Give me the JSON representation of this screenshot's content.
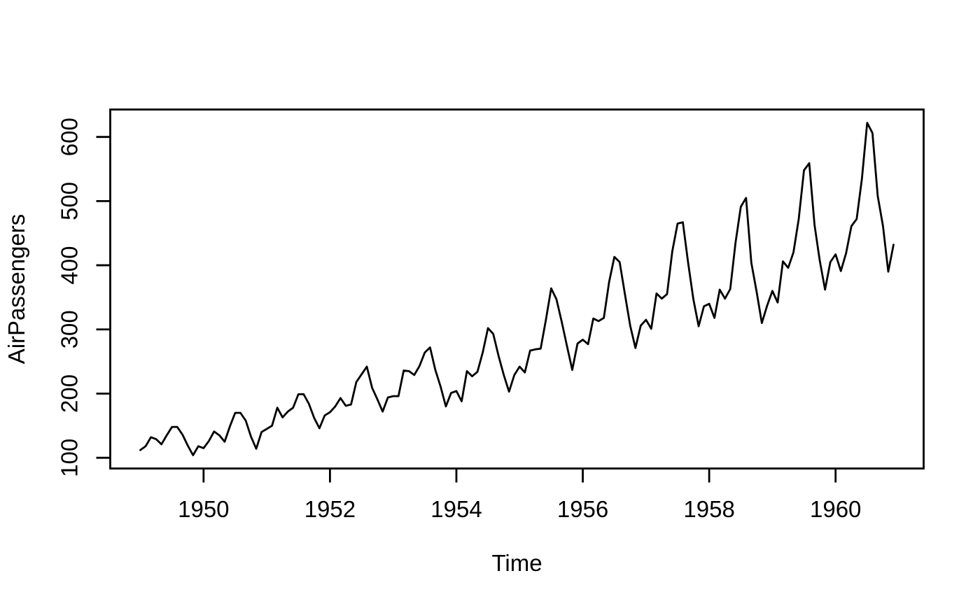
{
  "chart_data": {
    "type": "line",
    "title": "",
    "xlabel": "Time",
    "ylabel": "AirPassengers",
    "series": [
      {
        "name": "AirPassengers",
        "start_year": 1949,
        "frequency": 12,
        "values": [
          112,
          118,
          132,
          129,
          121,
          135,
          148,
          148,
          136,
          119,
          104,
          118,
          115,
          126,
          141,
          135,
          125,
          149,
          170,
          170,
          158,
          133,
          114,
          140,
          145,
          150,
          178,
          163,
          172,
          178,
          199,
          199,
          184,
          162,
          146,
          166,
          171,
          180,
          193,
          181,
          183,
          218,
          230,
          242,
          209,
          191,
          172,
          194,
          196,
          196,
          236,
          235,
          229,
          243,
          264,
          272,
          237,
          211,
          180,
          201,
          204,
          188,
          235,
          227,
          234,
          264,
          302,
          293,
          259,
          229,
          203,
          229,
          242,
          233,
          267,
          269,
          270,
          315,
          364,
          347,
          312,
          274,
          237,
          278,
          284,
          277,
          317,
          313,
          318,
          374,
          413,
          405,
          355,
          306,
          271,
          306,
          315,
          301,
          356,
          348,
          355,
          422,
          465,
          467,
          404,
          347,
          305,
          336,
          340,
          318,
          362,
          348,
          363,
          435,
          491,
          505,
          404,
          359,
          310,
          337,
          360,
          342,
          406,
          396,
          420,
          472,
          548,
          559,
          463,
          407,
          362,
          405,
          417,
          391,
          419,
          461,
          472,
          535,
          622,
          606,
          508,
          461,
          390,
          432
        ]
      }
    ],
    "x_ticks": [
      1950,
      1952,
      1954,
      1956,
      1958,
      1960
    ],
    "y_ticks": [
      100,
      200,
      300,
      400,
      500,
      600
    ],
    "xlim": [
      1948.52333,
      1961.39333
    ],
    "ylim": [
      83.28,
      642.72
    ],
    "grid": false,
    "legend": "none",
    "line_color": "#000000",
    "background_color": "#ffffff",
    "text_color": "#000000",
    "box": true
  }
}
